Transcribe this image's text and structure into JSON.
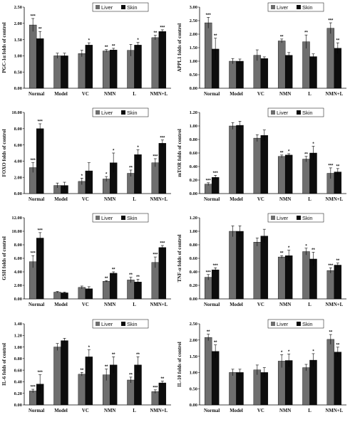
{
  "legend": {
    "series_a": "Liver",
    "series_b": "Skin",
    "color_a": "#6e6e6e",
    "color_b": "#0d0d0d"
  },
  "chart_data": [
    {
      "type": "bar",
      "ylabel": "PGC-1α folds of control",
      "categories": [
        "Normal",
        "Model",
        "VC",
        "NMN",
        "L",
        "NMN+L"
      ],
      "ylim": [
        0,
        2.5
      ],
      "ticks": [
        "0.00",
        "0.50",
        "1.00",
        "1.50",
        "2.00",
        "2.50"
      ],
      "series": [
        {
          "name": "Liver",
          "values": [
            1.95,
            1.0,
            1.07,
            1.15,
            1.17,
            1.56
          ],
          "errors": [
            0.2,
            0.08,
            0.1,
            0.04,
            0.18,
            0.07
          ],
          "sig": [
            "***",
            "",
            "",
            "**",
            "",
            "**"
          ]
        },
        {
          "name": "Skin",
          "values": [
            1.53,
            1.0,
            1.33,
            1.18,
            1.33,
            1.75
          ],
          "errors": [
            0.22,
            0.08,
            0.07,
            0.05,
            0.08,
            0.05
          ],
          "sig": [
            "**",
            "",
            "*",
            "**",
            "*",
            "***"
          ]
        }
      ]
    },
    {
      "type": "bar",
      "ylabel": "APPL1 folds of control",
      "categories": [
        "Normal",
        "Model",
        "VC",
        "NMN",
        "L",
        "NMN+L"
      ],
      "ylim": [
        0,
        3
      ],
      "ticks": [
        "0.00",
        "0.50",
        "1.00",
        "1.50",
        "2.00",
        "2.50",
        "3.00"
      ],
      "series": [
        {
          "name": "Liver",
          "values": [
            2.42,
            1.0,
            1.22,
            1.75,
            1.72,
            2.22
          ],
          "errors": [
            0.2,
            0.1,
            0.2,
            0.07,
            0.25,
            0.2
          ],
          "sig": [
            "***",
            "",
            "",
            "**",
            "**",
            "***"
          ]
        },
        {
          "name": "Skin",
          "values": [
            1.45,
            1.0,
            1.1,
            1.22,
            1.17,
            1.48
          ],
          "errors": [
            0.4,
            0.08,
            0.06,
            0.1,
            0.1,
            0.2
          ],
          "sig": [
            "**",
            "",
            "",
            "",
            "",
            "**"
          ]
        }
      ]
    },
    {
      "type": "bar",
      "ylabel": "FOXO folds of control",
      "categories": [
        "Normal",
        "Model",
        "VC",
        "NMN",
        "L",
        "NMN+L"
      ],
      "ylim": [
        0,
        10
      ],
      "ticks": [
        "0.00",
        "2.00",
        "4.00",
        "6.00",
        "8.00",
        "10.00"
      ],
      "series": [
        {
          "name": "Liver",
          "values": [
            3.2,
            1.0,
            1.5,
            1.8,
            2.5,
            3.8
          ],
          "errors": [
            0.6,
            0.3,
            0.4,
            0.3,
            0.4,
            0.5
          ],
          "sig": [
            "***",
            "",
            "*",
            "*",
            "**",
            "***"
          ]
        },
        {
          "name": "Skin",
          "values": [
            8.0,
            1.0,
            2.8,
            3.8,
            4.8,
            6.2
          ],
          "errors": [
            0.6,
            0.4,
            1.0,
            1.2,
            0.6,
            0.4
          ],
          "sig": [
            "***",
            "",
            "",
            "*",
            "*",
            "***"
          ]
        }
      ]
    },
    {
      "type": "bar",
      "ylabel": "mTOR folds of control",
      "categories": [
        "Normal",
        "Model",
        "VC",
        "NMN",
        "L",
        "NMN+L"
      ],
      "ylim": [
        0,
        1.2
      ],
      "ticks": [
        "0.00",
        "0.20",
        "0.40",
        "0.60",
        "0.80",
        "1.00",
        "1.20"
      ],
      "series": [
        {
          "name": "Liver",
          "values": [
            0.14,
            1.0,
            0.82,
            0.55,
            0.51,
            0.3
          ],
          "errors": [
            0.02,
            0.05,
            0.05,
            0.02,
            0.04,
            0.08
          ],
          "sig": [
            "***",
            "",
            "",
            "**",
            "**",
            "***"
          ]
        },
        {
          "name": "Skin",
          "values": [
            0.24,
            1.01,
            0.86,
            0.57,
            0.6,
            0.32
          ],
          "errors": [
            0.03,
            0.06,
            0.08,
            0.02,
            0.1,
            0.05
          ],
          "sig": [
            "***",
            "",
            "",
            "*",
            "*",
            "**"
          ]
        }
      ]
    },
    {
      "type": "bar",
      "ylabel": "GSH folds of control",
      "categories": [
        "Normal",
        "Model",
        "VC",
        "NMN",
        "L",
        "NMN+L"
      ],
      "ylim": [
        0,
        12
      ],
      "ticks": [
        "0.00",
        "2.00",
        "4.00",
        "6.00",
        "8.00",
        "10.00",
        "12.00"
      ],
      "series": [
        {
          "name": "Liver",
          "values": [
            5.5,
            1.0,
            1.7,
            2.6,
            2.8,
            5.4
          ],
          "errors": [
            0.9,
            0.1,
            0.2,
            0.1,
            0.4,
            0.8
          ],
          "sig": [
            "***",
            "",
            "",
            "**",
            "**",
            "***"
          ]
        },
        {
          "name": "Skin",
          "values": [
            9.0,
            0.9,
            1.5,
            3.8,
            2.5,
            7.6
          ],
          "errors": [
            0.8,
            0.1,
            0.3,
            0.2,
            0.4,
            0.3
          ],
          "sig": [
            "***",
            "",
            "",
            "**",
            "**",
            "***"
          ]
        }
      ]
    },
    {
      "type": "bar",
      "ylabel": "TNF-α folds of control",
      "categories": [
        "Normal",
        "Model",
        "VC",
        "NMN",
        "L",
        "NMN+L"
      ],
      "ylim": [
        0,
        1.2
      ],
      "ticks": [
        "0.00",
        "0.20",
        "0.40",
        "0.60",
        "0.80",
        "1.00",
        "1.20"
      ],
      "series": [
        {
          "name": "Liver",
          "values": [
            0.32,
            1.0,
            0.84,
            0.62,
            0.7,
            0.42
          ],
          "errors": [
            0.04,
            0.08,
            0.06,
            0.02,
            0.05,
            0.04
          ],
          "sig": [
            "***",
            "",
            "",
            "**",
            "*",
            "***"
          ]
        },
        {
          "name": "Skin",
          "values": [
            0.43,
            1.0,
            0.93,
            0.64,
            0.59,
            0.5
          ],
          "errors": [
            0.03,
            0.08,
            0.1,
            0.08,
            0.1,
            0.03
          ],
          "sig": [
            "***",
            "",
            "",
            "*",
            "**",
            "**"
          ]
        }
      ]
    },
    {
      "type": "bar",
      "ylabel": "IL-6 folds of control",
      "categories": [
        "Normal",
        "Model",
        "VC",
        "NMN",
        "L",
        "NMN+L"
      ],
      "ylim": [
        0,
        1.4
      ],
      "ticks": [
        "0.00",
        "0.20",
        "0.40",
        "0.60",
        "0.80",
        "1.00",
        "1.20",
        "1.40"
      ],
      "series": [
        {
          "name": "Liver",
          "values": [
            0.24,
            1.0,
            0.53,
            0.52,
            0.43,
            0.23
          ],
          "errors": [
            0.03,
            0.06,
            0.03,
            0.1,
            0.05,
            0.03
          ],
          "sig": [
            "***",
            "",
            "**",
            "**",
            "**",
            "***"
          ]
        },
        {
          "name": "Skin",
          "values": [
            0.36,
            1.11,
            0.83,
            0.69,
            0.69,
            0.38
          ],
          "errors": [
            0.16,
            0.04,
            0.12,
            0.14,
            0.14,
            0.03
          ],
          "sig": [
            "***",
            "",
            "*",
            "**",
            "**",
            "**"
          ]
        }
      ]
    },
    {
      "type": "bar",
      "ylabel": "IL-10 folds of control",
      "categories": [
        "Normal",
        "Model",
        "VC",
        "NMN",
        "L",
        "NMN+L"
      ],
      "ylim": [
        0,
        2.5
      ],
      "ticks": [
        "0.00",
        "0.50",
        "1.00",
        "1.50",
        "2.00",
        "2.50"
      ],
      "series": [
        {
          "name": "Liver",
          "values": [
            2.08,
            1.0,
            1.08,
            1.35,
            1.15,
            2.02
          ],
          "errors": [
            0.1,
            0.1,
            0.15,
            0.2,
            0.1,
            0.15
          ],
          "sig": [
            "**",
            "",
            "",
            "*",
            "",
            "**"
          ]
        },
        {
          "name": "Skin",
          "values": [
            1.65,
            1.0,
            1.0,
            1.37,
            1.38,
            1.63
          ],
          "errors": [
            0.2,
            0.1,
            0.15,
            0.2,
            0.2,
            0.15
          ],
          "sig": [
            "**",
            "",
            "",
            "*",
            "*",
            "**"
          ]
        }
      ]
    }
  ]
}
